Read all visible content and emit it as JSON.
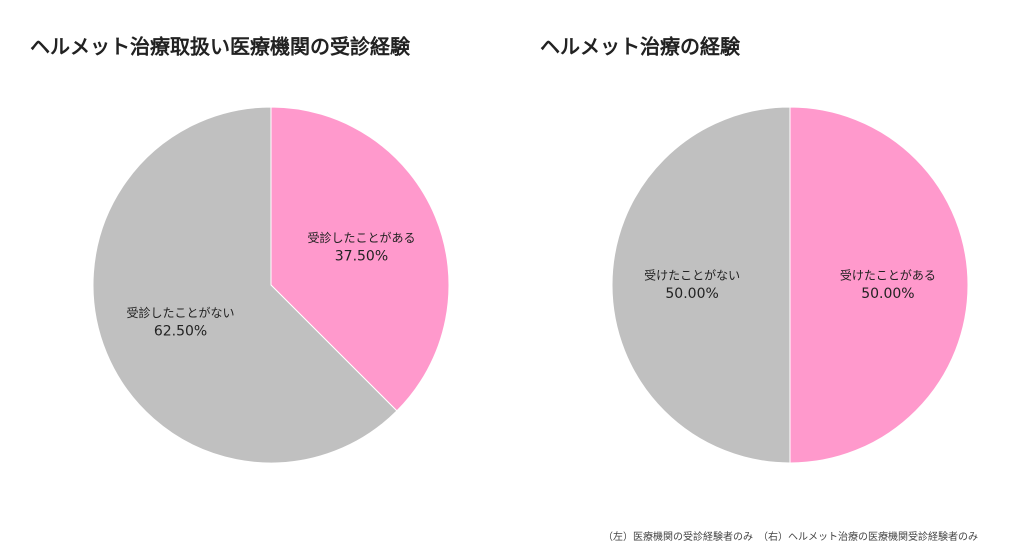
{
  "chart_data": [
    {
      "type": "pie",
      "title": "ヘルメット治療取扱い医療機関の受診経験",
      "categories": [
        "受診したことがある",
        "受診したことがない"
      ],
      "values": [
        37.5,
        62.5
      ],
      "value_labels": [
        "37.50%",
        "62.50%"
      ],
      "colors": [
        "#ff99cc",
        "#c0c0c0"
      ]
    },
    {
      "type": "pie",
      "title": "ヘルメット治療の経験",
      "categories": [
        "受けたことがある",
        "受けたことがない"
      ],
      "values": [
        50,
        50
      ],
      "value_labels": [
        "50.00%",
        "50.00%"
      ],
      "colors": [
        "#ff99cc",
        "#c0c0c0"
      ]
    }
  ],
  "footnote": "（左）医療機関の受診経験者のみ　（右）ヘルメット治療の医療機関受診経験者のみ"
}
